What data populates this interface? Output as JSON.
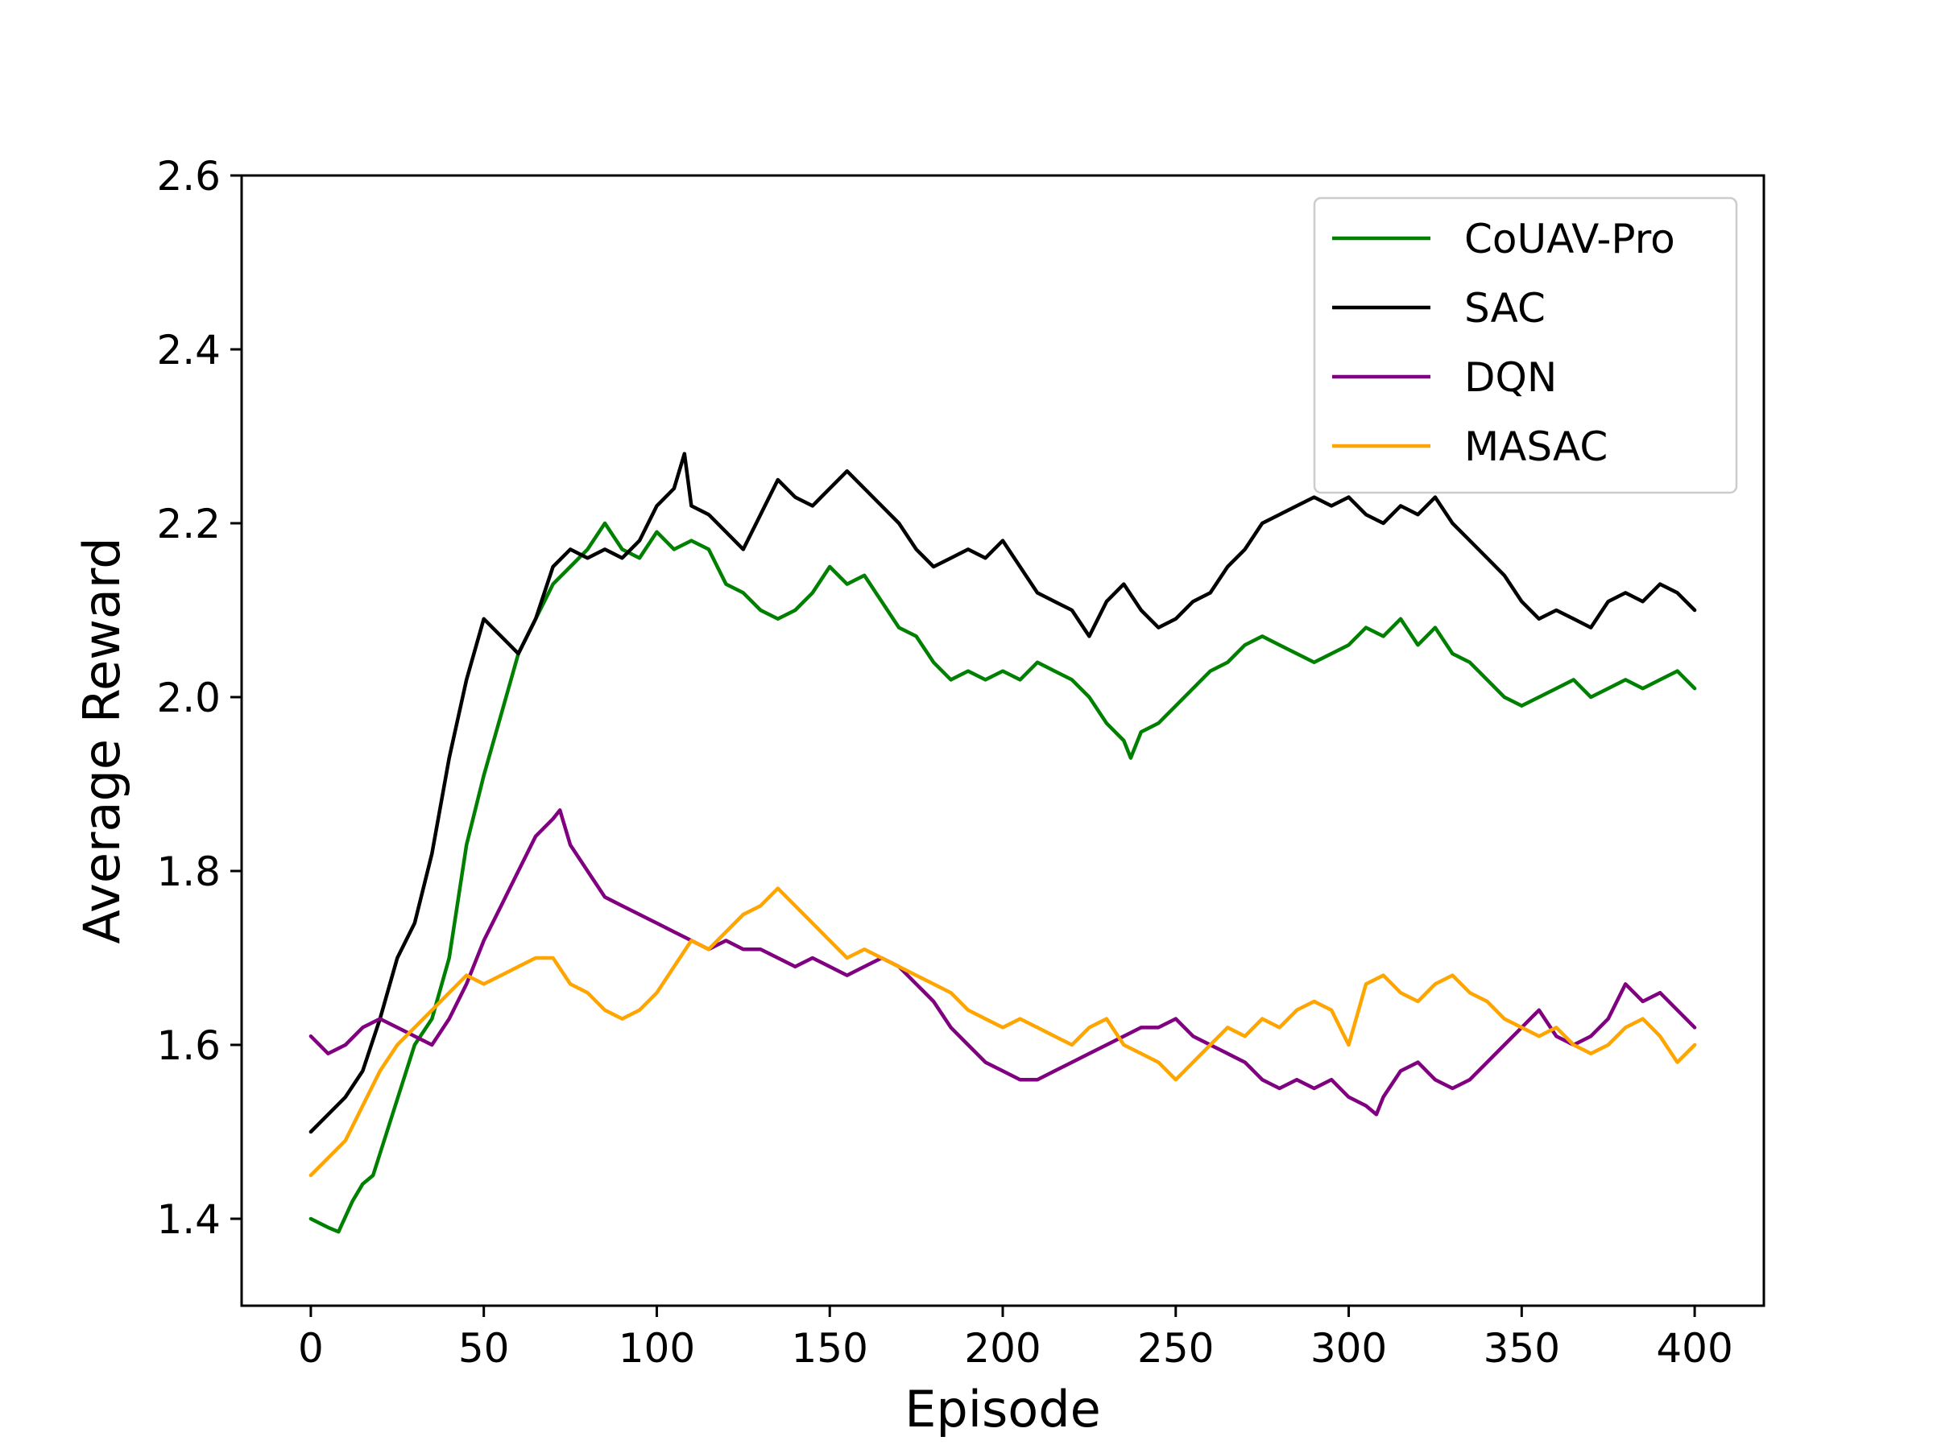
{
  "chart_data": {
    "type": "line",
    "title": "",
    "xlabel": "Episode",
    "ylabel": "Average Reward",
    "xlim": [
      -20,
      420
    ],
    "ylim": [
      1.3,
      2.6
    ],
    "xticks": [
      0,
      50,
      100,
      150,
      200,
      250,
      300,
      350,
      400
    ],
    "yticks": [
      1.4,
      1.6,
      1.8,
      2.0,
      2.2,
      2.4,
      2.6
    ],
    "xtick_labels": [
      "0",
      "50",
      "100",
      "150",
      "200",
      "250",
      "300",
      "350",
      "400"
    ],
    "ytick_labels": [
      "1.4",
      "1.6",
      "1.8",
      "2.0",
      "2.2",
      "2.4",
      "2.6"
    ],
    "grid": false,
    "legend_position": "top-right",
    "series": [
      {
        "name": "CoUAV-Pro",
        "color": "#008000",
        "x": [
          0,
          5,
          8,
          12,
          15,
          18,
          22,
          26,
          30,
          35,
          40,
          45,
          50,
          55,
          60,
          65,
          70,
          75,
          80,
          85,
          90,
          95,
          100,
          105,
          110,
          115,
          120,
          125,
          130,
          135,
          140,
          145,
          150,
          155,
          160,
          165,
          170,
          175,
          180,
          185,
          190,
          195,
          200,
          205,
          210,
          215,
          220,
          225,
          230,
          235,
          237,
          240,
          245,
          250,
          255,
          260,
          265,
          270,
          275,
          280,
          285,
          290,
          295,
          300,
          305,
          310,
          315,
          320,
          325,
          330,
          335,
          340,
          345,
          350,
          355,
          360,
          365,
          370,
          375,
          380,
          385,
          390,
          395,
          400
        ],
        "y": [
          1.4,
          1.39,
          1.385,
          1.42,
          1.44,
          1.45,
          1.5,
          1.55,
          1.6,
          1.63,
          1.7,
          1.83,
          1.91,
          1.98,
          2.05,
          2.09,
          2.13,
          2.15,
          2.17,
          2.2,
          2.17,
          2.16,
          2.19,
          2.17,
          2.18,
          2.17,
          2.13,
          2.12,
          2.1,
          2.09,
          2.1,
          2.12,
          2.15,
          2.13,
          2.14,
          2.11,
          2.08,
          2.07,
          2.04,
          2.02,
          2.03,
          2.02,
          2.03,
          2.02,
          2.04,
          2.03,
          2.02,
          2.0,
          1.97,
          1.95,
          1.93,
          1.96,
          1.97,
          1.99,
          2.01,
          2.03,
          2.04,
          2.06,
          2.07,
          2.06,
          2.05,
          2.04,
          2.05,
          2.06,
          2.08,
          2.07,
          2.09,
          2.06,
          2.08,
          2.05,
          2.04,
          2.02,
          2.0,
          1.99,
          2.0,
          2.01,
          2.02,
          2.0,
          2.01,
          2.02,
          2.01,
          2.02,
          2.03,
          2.01
        ]
      },
      {
        "name": "SAC",
        "color": "#000000",
        "x": [
          0,
          5,
          10,
          15,
          20,
          25,
          30,
          35,
          40,
          45,
          50,
          55,
          60,
          65,
          70,
          75,
          80,
          85,
          90,
          95,
          100,
          105,
          108,
          110,
          115,
          120,
          125,
          130,
          135,
          140,
          145,
          150,
          155,
          160,
          165,
          170,
          175,
          180,
          185,
          190,
          195,
          200,
          205,
          210,
          215,
          220,
          225,
          230,
          235,
          240,
          245,
          250,
          255,
          260,
          265,
          270,
          275,
          280,
          285,
          290,
          295,
          300,
          305,
          310,
          315,
          320,
          325,
          330,
          335,
          340,
          345,
          350,
          355,
          360,
          365,
          370,
          375,
          380,
          385,
          390,
          395,
          400
        ],
        "y": [
          1.5,
          1.52,
          1.54,
          1.57,
          1.63,
          1.7,
          1.74,
          1.82,
          1.93,
          2.02,
          2.09,
          2.07,
          2.05,
          2.09,
          2.15,
          2.17,
          2.16,
          2.17,
          2.16,
          2.18,
          2.22,
          2.24,
          2.28,
          2.22,
          2.21,
          2.19,
          2.17,
          2.21,
          2.25,
          2.23,
          2.22,
          2.24,
          2.26,
          2.24,
          2.22,
          2.2,
          2.17,
          2.15,
          2.16,
          2.17,
          2.16,
          2.18,
          2.15,
          2.12,
          2.11,
          2.1,
          2.07,
          2.11,
          2.13,
          2.1,
          2.08,
          2.09,
          2.11,
          2.12,
          2.15,
          2.17,
          2.2,
          2.21,
          2.22,
          2.23,
          2.22,
          2.23,
          2.21,
          2.2,
          2.22,
          2.21,
          2.23,
          2.2,
          2.18,
          2.16,
          2.14,
          2.11,
          2.09,
          2.1,
          2.09,
          2.08,
          2.11,
          2.12,
          2.11,
          2.13,
          2.12,
          2.1
        ]
      },
      {
        "name": "DQN",
        "color": "#800080",
        "x": [
          0,
          5,
          10,
          15,
          20,
          25,
          30,
          35,
          40,
          45,
          50,
          55,
          60,
          65,
          70,
          72,
          75,
          80,
          85,
          90,
          95,
          100,
          105,
          110,
          115,
          120,
          125,
          130,
          135,
          140,
          145,
          150,
          155,
          160,
          165,
          170,
          175,
          180,
          185,
          190,
          195,
          200,
          205,
          210,
          215,
          220,
          225,
          230,
          235,
          240,
          245,
          250,
          255,
          260,
          265,
          270,
          275,
          280,
          285,
          290,
          295,
          300,
          305,
          308,
          310,
          315,
          320,
          325,
          330,
          335,
          340,
          345,
          350,
          355,
          360,
          365,
          370,
          375,
          380,
          385,
          390,
          395,
          400
        ],
        "y": [
          1.61,
          1.59,
          1.6,
          1.62,
          1.63,
          1.62,
          1.61,
          1.6,
          1.63,
          1.67,
          1.72,
          1.76,
          1.8,
          1.84,
          1.86,
          1.87,
          1.83,
          1.8,
          1.77,
          1.76,
          1.75,
          1.74,
          1.73,
          1.72,
          1.71,
          1.72,
          1.71,
          1.71,
          1.7,
          1.69,
          1.7,
          1.69,
          1.68,
          1.69,
          1.7,
          1.69,
          1.67,
          1.65,
          1.62,
          1.6,
          1.58,
          1.57,
          1.56,
          1.56,
          1.57,
          1.58,
          1.59,
          1.6,
          1.61,
          1.62,
          1.62,
          1.63,
          1.61,
          1.6,
          1.59,
          1.58,
          1.56,
          1.55,
          1.56,
          1.55,
          1.56,
          1.54,
          1.53,
          1.52,
          1.54,
          1.57,
          1.58,
          1.56,
          1.55,
          1.56,
          1.58,
          1.6,
          1.62,
          1.64,
          1.61,
          1.6,
          1.61,
          1.63,
          1.67,
          1.65,
          1.66,
          1.64,
          1.62
        ]
      },
      {
        "name": "MASAC",
        "color": "#FFA500",
        "x": [
          0,
          5,
          10,
          15,
          20,
          25,
          30,
          35,
          40,
          45,
          50,
          55,
          60,
          65,
          70,
          75,
          80,
          85,
          90,
          95,
          100,
          105,
          110,
          115,
          120,
          125,
          130,
          135,
          140,
          145,
          150,
          155,
          160,
          165,
          170,
          175,
          180,
          185,
          190,
          195,
          200,
          205,
          210,
          215,
          220,
          225,
          230,
          235,
          240,
          245,
          250,
          255,
          260,
          265,
          270,
          275,
          280,
          285,
          290,
          295,
          300,
          305,
          310,
          315,
          320,
          325,
          330,
          335,
          340,
          345,
          350,
          355,
          360,
          365,
          370,
          375,
          380,
          385,
          390,
          395,
          400
        ],
        "y": [
          1.45,
          1.47,
          1.49,
          1.53,
          1.57,
          1.6,
          1.62,
          1.64,
          1.66,
          1.68,
          1.67,
          1.68,
          1.69,
          1.7,
          1.7,
          1.67,
          1.66,
          1.64,
          1.63,
          1.64,
          1.66,
          1.69,
          1.72,
          1.71,
          1.73,
          1.75,
          1.76,
          1.78,
          1.76,
          1.74,
          1.72,
          1.7,
          1.71,
          1.7,
          1.69,
          1.68,
          1.67,
          1.66,
          1.64,
          1.63,
          1.62,
          1.63,
          1.62,
          1.61,
          1.6,
          1.62,
          1.63,
          1.6,
          1.59,
          1.58,
          1.56,
          1.58,
          1.6,
          1.62,
          1.61,
          1.63,
          1.62,
          1.64,
          1.65,
          1.64,
          1.6,
          1.67,
          1.68,
          1.66,
          1.65,
          1.67,
          1.68,
          1.66,
          1.65,
          1.63,
          1.62,
          1.61,
          1.62,
          1.6,
          1.59,
          1.6,
          1.62,
          1.63,
          1.61,
          1.58,
          1.6
        ]
      }
    ]
  }
}
